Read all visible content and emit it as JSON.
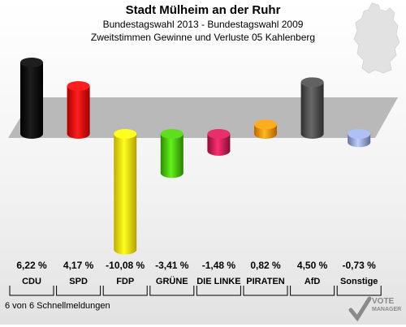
{
  "chart_data": {
    "type": "bar",
    "title": "Stadt Mülheim an der Ruhr",
    "subtitle1": "Bundestagswahl 2013 - Bundestagswahl 2009",
    "subtitle2": "Zweitstimmen Gewinne und Verluste 05 Kahlenberg",
    "categories": [
      "CDU",
      "SPD",
      "FDP",
      "GRÜNE",
      "DIE LINKE",
      "PIRATEN",
      "AfD",
      "Sonstige"
    ],
    "values": [
      6.22,
      4.17,
      -10.08,
      -3.41,
      -1.48,
      0.82,
      4.5,
      -0.73
    ],
    "value_labels": [
      "6,22 %",
      "4,17 %",
      "-10,08 %",
      "-3,41 %",
      "-1,48 %",
      "0,82 %",
      "4,50 %",
      "-0,73 %"
    ],
    "colors": [
      "#000000",
      "#e60000",
      "#ffe600",
      "#3cb800",
      "#c0104a",
      "#ff8800",
      "#404040",
      "#8a9acd"
    ],
    "ylim": [
      -10.5,
      6.5
    ],
    "footer": "6 von 6 Schnellmeldungen"
  },
  "logo": {
    "line1": "VOTE",
    "line2": "MANAGER"
  }
}
